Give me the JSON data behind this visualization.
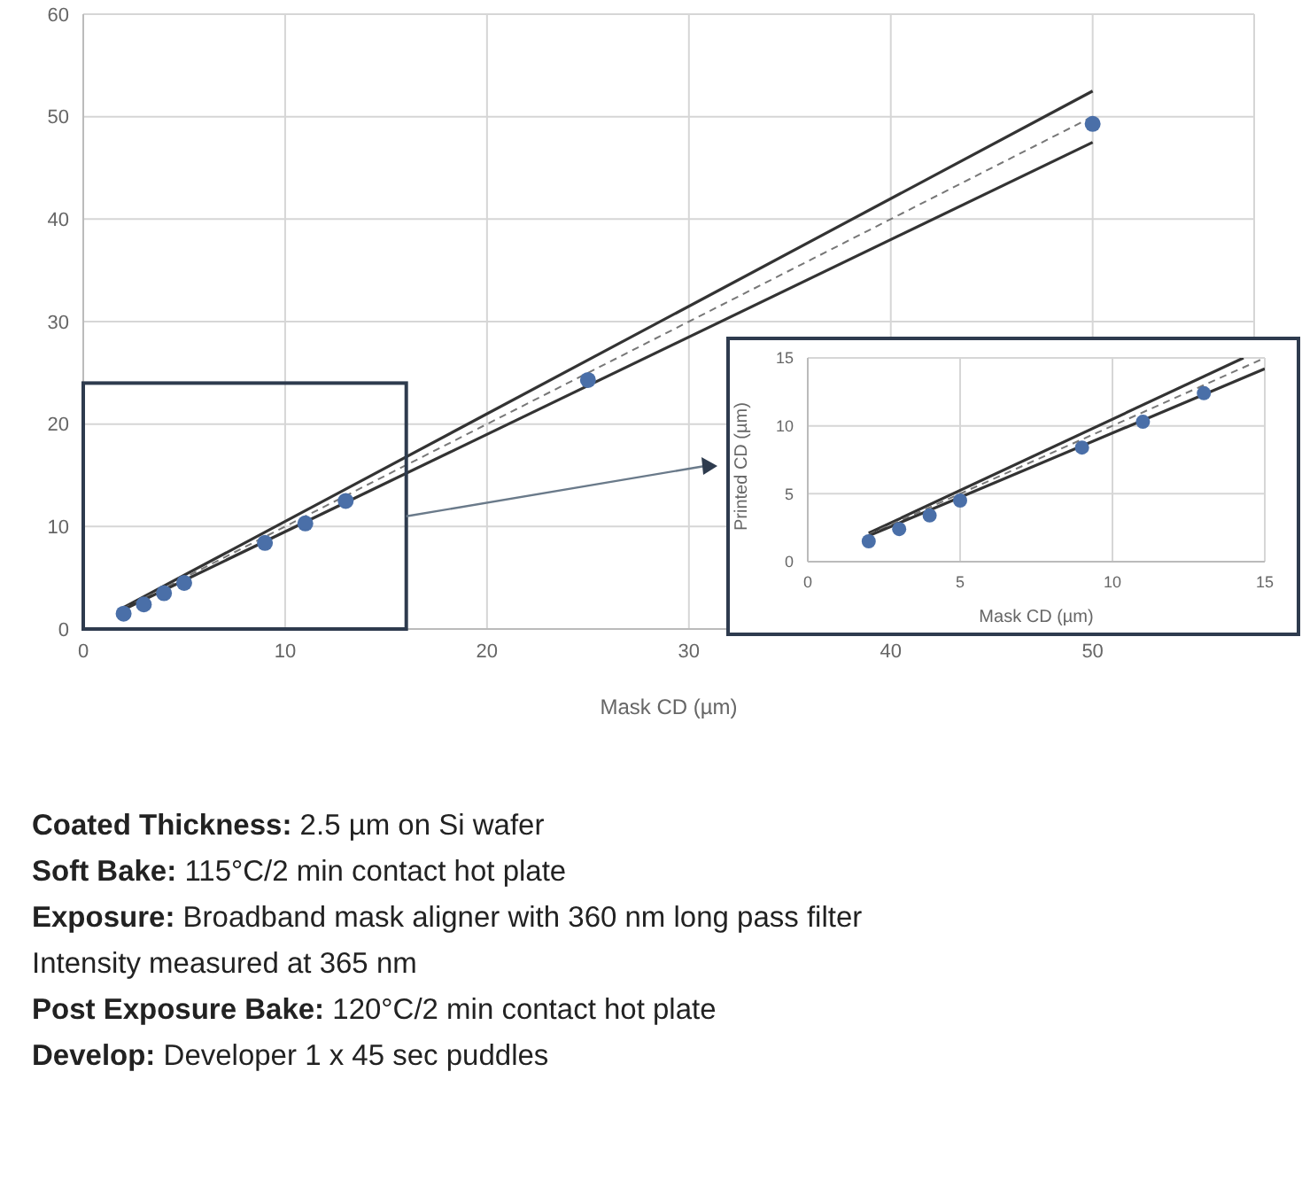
{
  "chart_data": [
    {
      "type": "scatter",
      "xlabel": "Mask CD (µm)",
      "xlim": [
        0,
        58
      ],
      "xticks": [
        0,
        10,
        20,
        30,
        40,
        50
      ],
      "ylim": [
        0,
        60
      ],
      "yticks": [
        0,
        10,
        20,
        30,
        40,
        50,
        60
      ],
      "grid": true,
      "marker": "circle",
      "series": [
        {
          "color": "#4a6fa8",
          "x": [
            2,
            3,
            4,
            5,
            9,
            11,
            13,
            25,
            50
          ],
          "values": [
            1.5,
            2.4,
            3.5,
            4.5,
            8.4,
            10.3,
            12.5,
            24.3,
            49.3
          ]
        },
        {
          "type": "line",
          "color": "#333333",
          "marker": "none",
          "line_style": "solid",
          "x": [
            2,
            50
          ],
          "values": [
            2.1,
            52.5
          ]
        },
        {
          "type": "line",
          "color": "#777777",
          "marker": "none",
          "line_style": "dashed",
          "x": [
            2,
            50
          ],
          "values": [
            2,
            50
          ]
        },
        {
          "type": "line",
          "color": "#333333",
          "marker": "none",
          "line_style": "solid",
          "x": [
            2,
            50
          ],
          "values": [
            1.9,
            47.5
          ]
        }
      ],
      "annotations": [
        "Coated Thickness: 2.5 µm on Si wafer",
        "Soft Bake: 115°C/2 min contact hot plate",
        "Exposure: Broadband mask aligner with 360 nm long pass filter",
        "Intensity measured at 365 nm",
        "Post Exposure Bake: 120°C/2 min contact hot plate",
        "Develop: Developer 1 x 45 sec puddles"
      ]
    },
    {
      "type": "scatter",
      "xlabel": "Mask CD (µm)",
      "ylabel": "Printed CD (µm)",
      "xlim": [
        0,
        15
      ],
      "xticks": [
        0,
        5,
        10,
        15
      ],
      "ylim": [
        0,
        15
      ],
      "yticks": [
        0,
        5,
        10,
        15
      ],
      "grid": true,
      "marker": "circle",
      "series": [
        {
          "color": "#4a6fa8",
          "x": [
            2,
            3,
            4,
            5,
            9,
            11,
            13
          ],
          "values": [
            1.5,
            2.4,
            3.4,
            4.5,
            8.4,
            10.3,
            12.4
          ]
        },
        {
          "type": "line",
          "color": "#333333",
          "marker": "none",
          "line_style": "solid",
          "x": [
            2,
            14.3
          ],
          "values": [
            2.1,
            15
          ]
        },
        {
          "type": "line",
          "color": "#777777",
          "marker": "none",
          "line_style": "dashed",
          "x": [
            2,
            15
          ],
          "values": [
            2,
            15
          ]
        },
        {
          "type": "line",
          "color": "#333333",
          "marker": "none",
          "line_style": "solid",
          "x": [
            2,
            15
          ],
          "values": [
            1.9,
            14.2
          ]
        }
      ]
    }
  ]
}
